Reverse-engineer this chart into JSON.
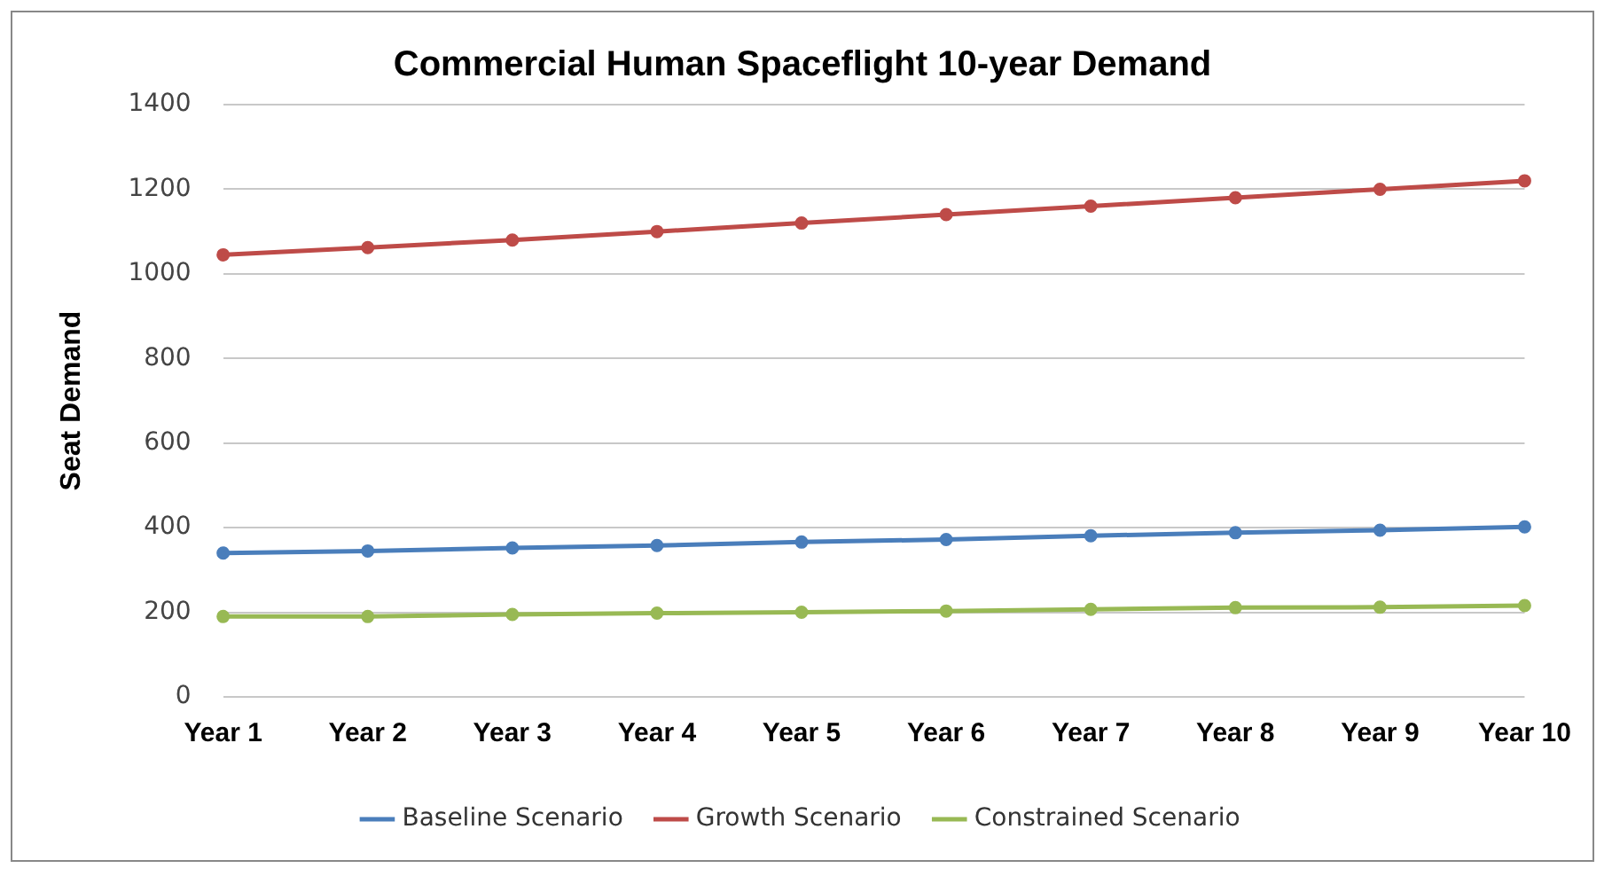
{
  "chart_data": {
    "type": "line",
    "title": "Commercial Human Spaceflight 10-year Demand",
    "ylabel": "Seat Demand",
    "categories": [
      "Year 1",
      "Year 2",
      "Year 3",
      "Year 4",
      "Year 5",
      "Year 6",
      "Year 7",
      "Year 8",
      "Year 9",
      "Year 10"
    ],
    "series": [
      {
        "name": "Baseline Scenario",
        "color": "#4a7ebb",
        "values": [
          340,
          345,
          352,
          358,
          366,
          372,
          381,
          388,
          394,
          402
        ]
      },
      {
        "name": "Growth Scenario",
        "color": "#be4b48",
        "values": [
          1045,
          1062,
          1080,
          1100,
          1120,
          1140,
          1160,
          1180,
          1200,
          1220
        ]
      },
      {
        "name": "Constrained Scenario",
        "color": "#98b954",
        "values": [
          190,
          190,
          195,
          198,
          200,
          203,
          207,
          211,
          212,
          216
        ]
      }
    ],
    "ylim": [
      0,
      1400
    ],
    "yticks": [
      0,
      200,
      400,
      600,
      800,
      1000,
      1200,
      1400
    ],
    "grid": "y",
    "legend": "bottom",
    "marker": "circle",
    "line_style": "solid"
  }
}
